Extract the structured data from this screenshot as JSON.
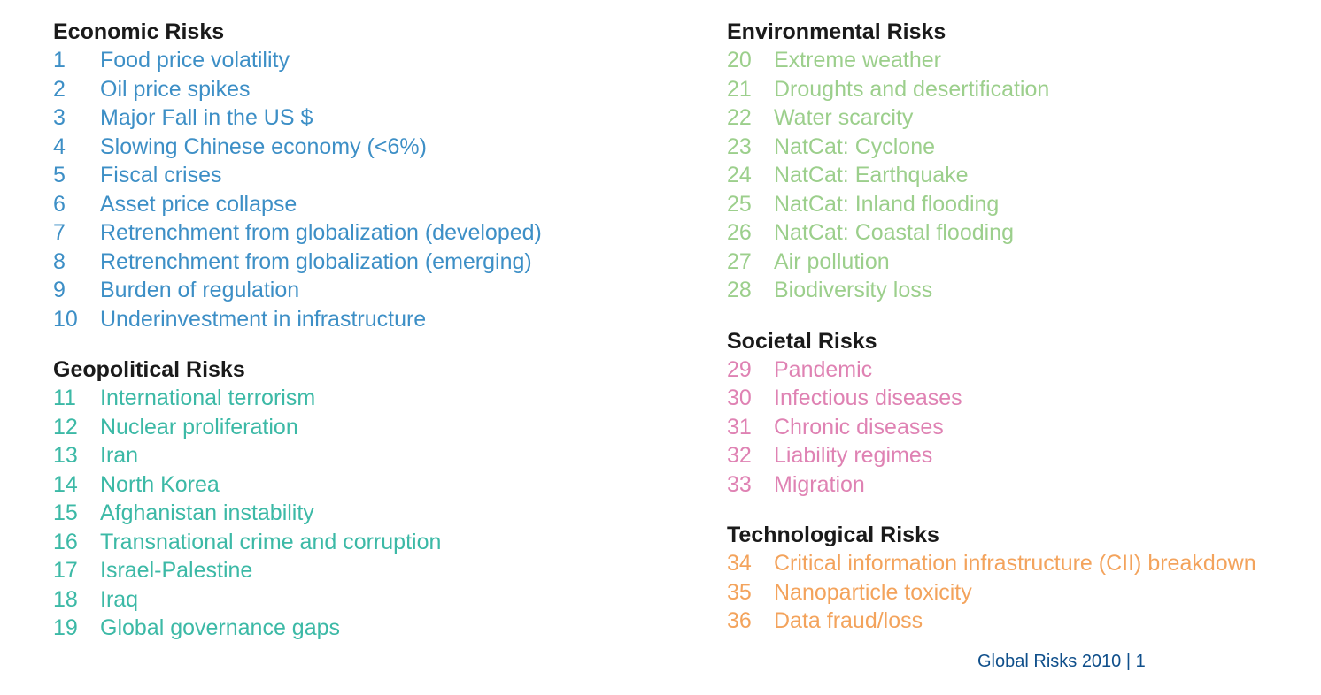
{
  "categories": {
    "economic": {
      "title": "Economic Risks",
      "color": "#3d8fc6",
      "items": [
        {
          "num": "1",
          "label": "Food price volatility"
        },
        {
          "num": "2",
          "label": "Oil price spikes"
        },
        {
          "num": "3",
          "label": "Major Fall in the US $"
        },
        {
          "num": "4",
          "label": "Slowing Chinese economy (<6%)"
        },
        {
          "num": "5",
          "label": "Fiscal crises"
        },
        {
          "num": "6",
          "label": "Asset price collapse"
        },
        {
          "num": "7",
          "label": "Retrenchment from globalization (developed)"
        },
        {
          "num": "8",
          "label": "Retrenchment from globalization (emerging)"
        },
        {
          "num": "9",
          "label": "Burden of regulation"
        },
        {
          "num": "10",
          "label": "Underinvestment in infrastructure"
        }
      ]
    },
    "geopolitical": {
      "title": "Geopolitical Risks",
      "color": "#3cb9a6",
      "items": [
        {
          "num": "11",
          "label": "International terrorism"
        },
        {
          "num": "12",
          "label": "Nuclear proliferation"
        },
        {
          "num": "13",
          "label": "Iran"
        },
        {
          "num": "14",
          "label": "North Korea"
        },
        {
          "num": "15",
          "label": "Afghanistan instability"
        },
        {
          "num": "16",
          "label": "Transnational crime and corruption"
        },
        {
          "num": "17",
          "label": "Israel-Palestine"
        },
        {
          "num": "18",
          "label": "Iraq"
        },
        {
          "num": "19",
          "label": "Global governance gaps"
        }
      ]
    },
    "environmental": {
      "title": "Environmental Risks",
      "color": "#9ccf8c",
      "items": [
        {
          "num": "20",
          "label": "Extreme weather"
        },
        {
          "num": "21",
          "label": "Droughts and desertification"
        },
        {
          "num": "22",
          "label": "Water scarcity"
        },
        {
          "num": "23",
          "label": "NatCat: Cyclone"
        },
        {
          "num": "24",
          "label": "NatCat: Earthquake"
        },
        {
          "num": "25",
          "label": "NatCat: Inland flooding"
        },
        {
          "num": "26",
          "label": "NatCat: Coastal flooding"
        },
        {
          "num": "27",
          "label": "Air pollution"
        },
        {
          "num": "28",
          "label": "Biodiversity loss"
        }
      ]
    },
    "societal": {
      "title": "Societal Risks",
      "color": "#df82b3",
      "items": [
        {
          "num": "29",
          "label": "Pandemic"
        },
        {
          "num": "30",
          "label": "Infectious diseases"
        },
        {
          "num": "31",
          "label": "Chronic diseases"
        },
        {
          "num": "32",
          "label": "Liability regimes"
        },
        {
          "num": "33",
          "label": "Migration"
        }
      ]
    },
    "technological": {
      "title": "Technological Risks",
      "color": "#f3a35c",
      "items": [
        {
          "num": "34",
          "label": "Critical information infrastructure (CII) breakdown"
        },
        {
          "num": "35",
          "label": "Nanoparticle toxicity"
        },
        {
          "num": "36",
          "label": "Data fraud/loss"
        }
      ]
    }
  },
  "footer": {
    "text": "Global Risks 2010 | 1",
    "color": "#0f4f8b"
  }
}
